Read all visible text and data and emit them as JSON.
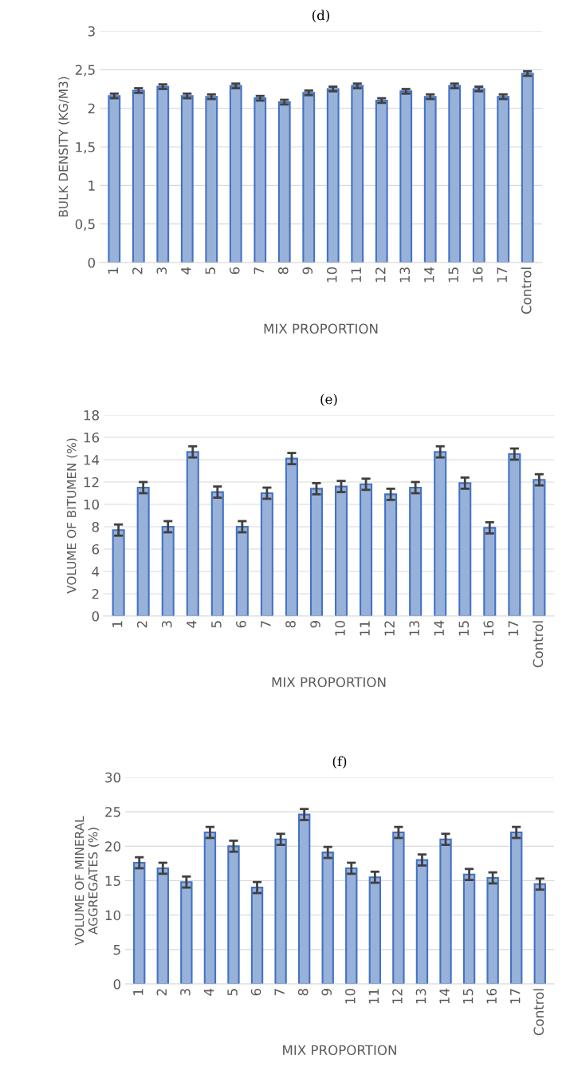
{
  "chart_data": [
    {
      "type": "bar",
      "title": "(d)",
      "xlabel": "MIX PROPORTION",
      "ylabel": "BULK DENSITY (KG/M3)",
      "categories": [
        "1",
        "2",
        "3",
        "4",
        "5",
        "6",
        "7",
        "8",
        "9",
        "10",
        "11",
        "12",
        "13",
        "14",
        "15",
        "16",
        "17",
        "Control"
      ],
      "series": [
        {
          "color": "#97b1d9",
          "values": [
            2.16,
            2.23,
            2.28,
            2.16,
            2.15,
            2.29,
            2.13,
            2.08,
            2.2,
            2.25,
            2.29,
            2.1,
            2.22,
            2.15,
            2.29,
            2.25,
            2.15,
            2.45
          ],
          "errors": [
            0.03,
            0.03,
            0.03,
            0.03,
            0.03,
            0.03,
            0.03,
            0.03,
            0.03,
            0.03,
            0.03,
            0.03,
            0.03,
            0.03,
            0.03,
            0.03,
            0.03,
            0.03
          ]
        }
      ],
      "ylim": [
        0,
        3
      ],
      "yticks": [
        0,
        {
          "value": 0.5,
          "label": "0,5"
        },
        1,
        {
          "value": 1.5,
          "label": "1,5"
        },
        2,
        {
          "value": 2.5,
          "label": "2,5"
        },
        3
      ],
      "grid": "y"
    },
    {
      "type": "bar",
      "title": "(e)",
      "xlabel": "MIX PROPORTION",
      "ylabel": "VOLUME OF BITUMEN (%)",
      "categories": [
        "1",
        "2",
        "3",
        "4",
        "5",
        "6",
        "7",
        "8",
        "9",
        "10",
        "11",
        "12",
        "13",
        "14",
        "15",
        "16",
        "17",
        "Control"
      ],
      "series": [
        {
          "color": "#97b1d9",
          "values": [
            7.7,
            11.5,
            8.0,
            14.7,
            11.1,
            8.0,
            11.0,
            14.1,
            11.4,
            11.6,
            11.8,
            10.9,
            11.5,
            14.7,
            11.9,
            7.9,
            14.5,
            12.2
          ],
          "errors": [
            0.5,
            0.5,
            0.5,
            0.5,
            0.5,
            0.5,
            0.5,
            0.5,
            0.5,
            0.5,
            0.5,
            0.5,
            0.5,
            0.5,
            0.5,
            0.5,
            0.5,
            0.5
          ]
        }
      ],
      "ylim": [
        0,
        18
      ],
      "yticks": [
        0,
        2,
        4,
        6,
        8,
        10,
        12,
        14,
        16,
        18
      ],
      "grid": "y"
    },
    {
      "type": "bar",
      "title": "(f)",
      "xlabel": "MIX PROPORTION",
      "ylabel": "VOLUME OF MINERAL\nAGGREGATES (%)",
      "categories": [
        "1",
        "2",
        "3",
        "4",
        "5",
        "6",
        "7",
        "8",
        "9",
        "10",
        "11",
        "12",
        "13",
        "14",
        "15",
        "16",
        "17",
        "Control"
      ],
      "series": [
        {
          "color": "#97b1d9",
          "values": [
            17.6,
            16.8,
            14.8,
            22.0,
            20.0,
            14.0,
            21.0,
            24.6,
            19.1,
            16.8,
            15.5,
            22.0,
            18.0,
            21.0,
            15.9,
            15.4,
            22.0,
            14.5
          ],
          "errors": [
            0.8,
            0.8,
            0.8,
            0.8,
            0.8,
            0.8,
            0.8,
            0.8,
            0.8,
            0.8,
            0.8,
            0.8,
            0.8,
            0.8,
            0.8,
            0.8,
            0.8,
            0.8
          ]
        }
      ],
      "ylim": [
        0,
        30
      ],
      "yticks": [
        0,
        5,
        10,
        15,
        20,
        25,
        30
      ],
      "grid": "y"
    }
  ]
}
